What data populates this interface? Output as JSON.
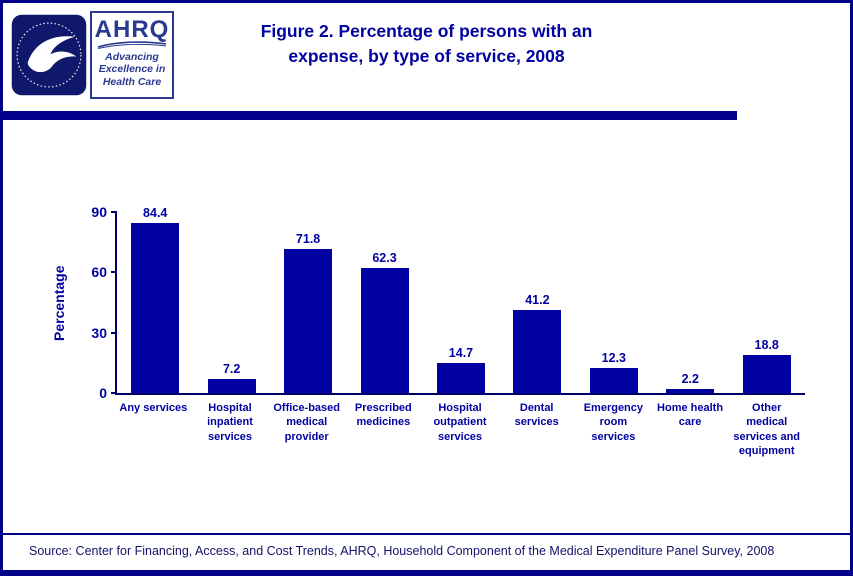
{
  "header": {
    "title_lines": [
      "Figure 2. Percentage of persons with an",
      "expense, by type of service, 2008"
    ],
    "ahrq": {
      "acronym": "AHRQ",
      "tagline_lines": [
        "Advancing",
        "Excellence in",
        "Health Care"
      ]
    }
  },
  "chart_data": {
    "type": "bar",
    "title": "Figure 2. Percentage of persons with an expense, by type of service, 2008",
    "categories": [
      "Any services",
      "Hospital inpatient services",
      "Office-based medical provider",
      "Prescribed medicines",
      "Hospital outpatient services",
      "Dental services",
      "Emergency room services",
      "Home health care",
      "Other medical services and equipment"
    ],
    "values": [
      84.4,
      7.2,
      71.8,
      62.3,
      14.7,
      41.2,
      12.3,
      2.2,
      18.8
    ],
    "xlabel": "",
    "ylabel": "Percentage",
    "ylim": [
      0,
      90
    ],
    "yticks": [
      0,
      30,
      60,
      90
    ],
    "bar_color": "#0202a0",
    "grid": false,
    "legend": false
  },
  "footer": {
    "source": "Source: Center for Financing, Access, and Cost Trends, AHRQ, Household Component of the Medical Expenditure Panel Survey, 2008"
  },
  "colors": {
    "navy": "#00008b",
    "bar": "#0202a0",
    "logo_blue": "#2b3990"
  }
}
